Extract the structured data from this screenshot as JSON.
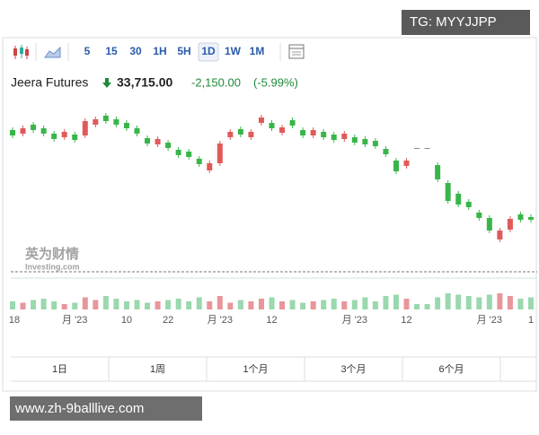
{
  "watermark_top": "TG: MYYJJPP",
  "toolbar": {
    "intervals": [
      "5",
      "15",
      "30",
      "1H",
      "5H",
      "1D",
      "1W",
      "1M"
    ],
    "selected": "1D"
  },
  "header": {
    "name": "Jeera Futures",
    "price": "33,715.00",
    "change": "-2,150.00",
    "change_percent": "(-5.99%)"
  },
  "chart_data": {
    "type": "candlestick",
    "categories": [
      "18",
      null,
      null,
      null,
      null,
      null,
      "月 '23",
      null,
      null,
      null,
      null,
      "10",
      null,
      null,
      null,
      "22",
      null,
      null,
      null,
      null,
      "月 '23",
      null,
      null,
      null,
      null,
      "12",
      null,
      null,
      null,
      null,
      null,
      null,
      null,
      "月 '23",
      null,
      null,
      null,
      null,
      "12",
      null,
      null,
      null,
      null,
      null,
      null,
      null,
      "月 '23",
      null,
      null,
      null,
      "1"
    ],
    "open": [
      36215,
      36115,
      36365,
      36265,
      36115,
      36015,
      36090,
      36065,
      36365,
      36615,
      36515,
      36415,
      36265,
      35990,
      35815,
      35865,
      35665,
      35615,
      35415,
      35090,
      35290,
      36015,
      36240,
      36015,
      36415,
      36415,
      36140,
      36490,
      36215,
      36065,
      36165,
      36090,
      35965,
      36015,
      35965,
      35915,
      35690,
      35365,
      35215,
      35715,
      35715,
      35240,
      34740,
      34440,
      34215,
      33915,
      33765,
      33165,
      33440,
      33865,
      33790
    ],
    "high": [
      36290,
      36340,
      36440,
      36340,
      36190,
      36240,
      36165,
      36540,
      36590,
      36690,
      36590,
      36490,
      36340,
      36065,
      36040,
      35940,
      35740,
      35690,
      35490,
      35365,
      35915,
      36240,
      36315,
      36240,
      36640,
      36490,
      36365,
      36565,
      36290,
      36290,
      36240,
      36165,
      36190,
      36090,
      36040,
      35990,
      35765,
      35440,
      35440,
      35715,
      35715,
      35315,
      34815,
      34515,
      34290,
      33990,
      33840,
      33490,
      33815,
      33940,
      33865
    ],
    "low": [
      35990,
      36040,
      36140,
      36040,
      35890,
      35940,
      35865,
      35990,
      36290,
      36390,
      36290,
      36190,
      36040,
      35765,
      35740,
      35640,
      35440,
      35390,
      35190,
      35015,
      35215,
      35940,
      36015,
      35940,
      36340,
      36190,
      36065,
      36265,
      35990,
      35990,
      35940,
      35865,
      35890,
      35790,
      35740,
      35690,
      35465,
      34990,
      35140,
      35715,
      35715,
      34765,
      34165,
      34065,
      33990,
      33690,
      33340,
      33090,
      33365,
      33640,
      33640
    ],
    "close": [
      36065,
      36265,
      36215,
      36115,
      35965,
      36165,
      35940,
      36465,
      36515,
      36465,
      36365,
      36265,
      36115,
      35840,
      35965,
      35715,
      35515,
      35465,
      35265,
      35290,
      35840,
      36165,
      36090,
      36165,
      36565,
      36265,
      36290,
      36340,
      36065,
      36215,
      36015,
      35940,
      36115,
      35865,
      35815,
      35765,
      35540,
      35065,
      35365,
      35715,
      35715,
      34840,
      34240,
      34140,
      34065,
      33765,
      33415,
      33415,
      33740,
      33715,
      33715
    ],
    "volume": [
      30,
      25,
      35,
      40,
      30,
      20,
      25,
      45,
      35,
      50,
      40,
      30,
      35,
      25,
      30,
      35,
      40,
      30,
      45,
      30,
      50,
      25,
      35,
      30,
      40,
      45,
      30,
      35,
      25,
      30,
      35,
      40,
      30,
      35,
      45,
      30,
      50,
      55,
      40,
      20,
      20,
      45,
      60,
      55,
      50,
      45,
      55,
      60,
      50,
      40,
      45
    ],
    "up_color": "#e05a5a",
    "down_color": "#39b54a",
    "flat_color": "#888888",
    "up_volume_color": "#e8969a",
    "down_volume_color": "#9ad8ae",
    "ylim": [
      32340,
      37090
    ],
    "volume_lim": [
      0,
      100
    ]
  },
  "logo": {
    "cn": "英为财情",
    "en": "Investing.com"
  },
  "range_tabs": [
    "1日",
    "1周",
    "1个月",
    "3个月",
    "6个月"
  ],
  "watermark_bottom": "www.zh-9balllive.com"
}
